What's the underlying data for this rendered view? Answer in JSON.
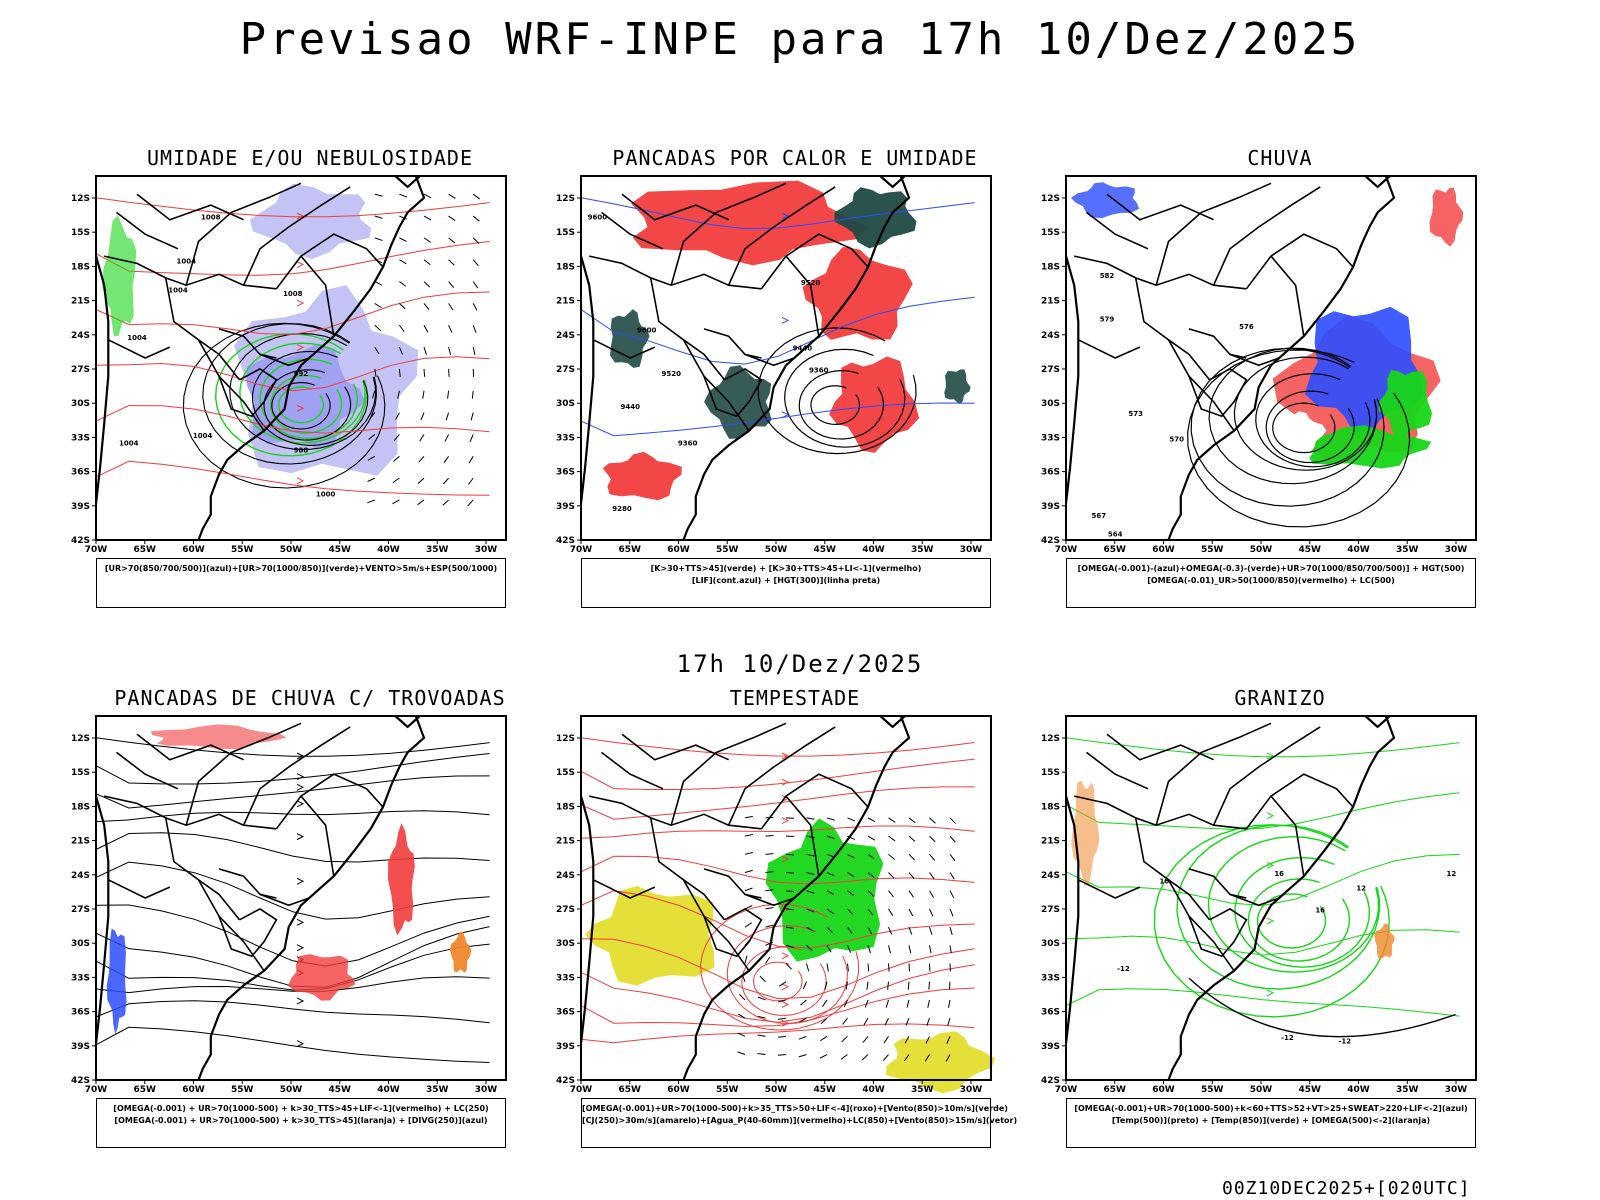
{
  "header": {
    "title": "Previsao WRF-INPE  para 17h 10/Dez/2025",
    "mid_title": "17h 10/Dez/2025",
    "footer_stamp": "00Z10DEC2025+[020UTC]"
  },
  "axes": {
    "lat_ticks": [
      "12S",
      "15S",
      "18S",
      "21S",
      "24S",
      "27S",
      "30S",
      "33S",
      "36S",
      "39S",
      "42S"
    ],
    "lon_ticks": [
      "70W",
      "65W",
      "60W",
      "55W",
      "50W",
      "45W",
      "40W",
      "35W",
      "30W"
    ]
  },
  "colors": {
    "blue": "#2b4cff",
    "green": "#17d617",
    "red": "#f23c3c",
    "dark_teal": "#1f4a45",
    "lavender": "#b9b9f4",
    "orange": "#f0872a",
    "yellow": "#e4de2e"
  },
  "panels": [
    {
      "title": "UMIDADE E/OU NEBULOSIDADE",
      "legend": [
        "[UR>70(850/700/500)](azul)+[UR>70(1000/850)](verde)+VENTO>5m/s+ESP(500/1000)"
      ],
      "contour_labels": [
        "1008",
        "1004",
        "1004",
        "1008",
        "1004",
        "1004",
        "1004",
        "992",
        "988",
        "1000"
      ]
    },
    {
      "title": "PANCADAS POR CALOR E UMIDADE",
      "legend": [
        "[K>30+TTS>45](verde)  +  [K>30+TTS>45+LI<-1](vermelho)",
        "[LIF](cont.azul)  +  [HGT(300)](linha preta)"
      ],
      "contour_labels": [
        "9600",
        "9600",
        "9520",
        "9440",
        "9360",
        "9520",
        "9440",
        "9360",
        "9280"
      ]
    },
    {
      "title": "CHUVA",
      "legend": [
        "[OMEGA(-0.001)-(azul)+OMEGA(-0.3)-(verde)+UR>70(1000/850/700/500)]  +  HGT(500)",
        "[OMEGA(-0.01)_UR>50(1000/850)(vermelho)  +  LC(500)"
      ],
      "contour_labels": [
        "582",
        "579",
        "576",
        "573",
        "570",
        "567",
        "564"
      ]
    },
    {
      "title": "PANCADAS DE CHUVA C/ TROVOADAS",
      "legend": [
        "[OMEGA(-0.001) + UR>70(1000-500) + k>30_TTS>45+LIF<-1](vermelho)  +  LC(250)",
        "[OMEGA(-0.001) + UR>70(1000-500) + k>30_TTS>45](laranja)  +  [DIVG(250)](azul)"
      ],
      "contour_labels": []
    },
    {
      "title": "TEMPESTADE",
      "legend": [
        "[OMEGA(-0.001)+UR>70(1000-500)+k>35_TTS>50+LIF<-4](roxo)+[Vento(850)>10m/s](verde)",
        "[CJ(250)>30m/s](amarelo)+[Agua_P(40-60mm)](vermelho)+LC(850)+[Vento(850)>15m/s](vetor)"
      ],
      "contour_labels": []
    },
    {
      "title": "GRANIZO",
      "legend": [
        "[OMEGA(-0.001)+UR>70(1000-500)+k<60+TTS>52+VT>25+SWEAT>220+LIF<-2](azul)",
        "[Temp(500)](preto)  +  [Temp(850)](verde)  +  [OMEGA(500)<-2](laranja)"
      ],
      "contour_labels": [
        "-12",
        "-12",
        "-12",
        "16",
        "16",
        "12",
        "16",
        "12"
      ]
    }
  ]
}
